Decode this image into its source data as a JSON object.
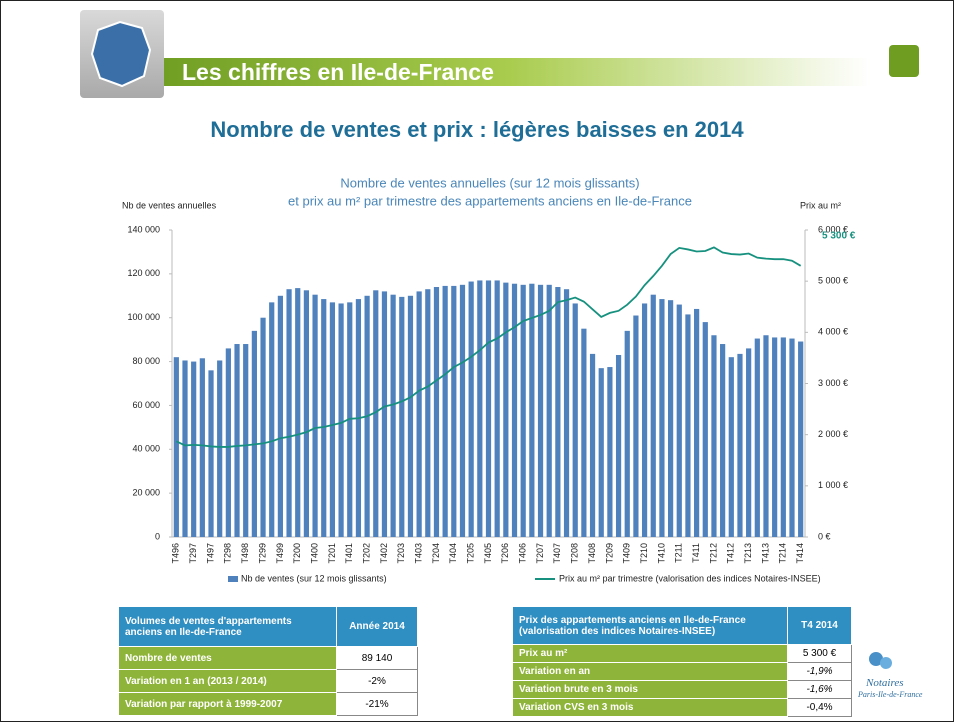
{
  "header": {
    "title": "Les chiffres en Ile-de-France",
    "headline": "Nombre de ventes et prix : légères baisses en 2014"
  },
  "chart_data": {
    "type": "bar",
    "title": [
      "Nombre de ventes annuelles (sur 12 mois glissants)",
      "et prix au m² par trimestre des appartements anciens en Ile-de-France"
    ],
    "y_label": "Nb de ventes annuelles",
    "y2_label": "Prix au m²",
    "categories": [
      "T496",
      null,
      "T297",
      null,
      "T497",
      null,
      "T298",
      null,
      "T498",
      null,
      "T299",
      null,
      "T499",
      null,
      "T200",
      null,
      "T400",
      null,
      "T201",
      null,
      "T401",
      null,
      "T202",
      null,
      "T402",
      null,
      "T203",
      null,
      "T403",
      null,
      "T204",
      null,
      "T404",
      null,
      "T205",
      null,
      "T405",
      null,
      "T206",
      null,
      "T406",
      null,
      "T207",
      null,
      "T407",
      null,
      "T208",
      null,
      "T408",
      null,
      "T209",
      null,
      "T409",
      null,
      "T210",
      null,
      "T410",
      null,
      "T211",
      null,
      "T411",
      null,
      "T212",
      null,
      "T412",
      null,
      "T213",
      null,
      "T413",
      null,
      "T214",
      null,
      "T414"
    ],
    "series": [
      {
        "name": "Nb de ventes (sur 12 mois glissants)",
        "type": "bar",
        "color": "#4f81bd",
        "values": [
          82000,
          80500,
          80000,
          81500,
          76000,
          80500,
          86000,
          88000,
          88000,
          94000,
          100000,
          107000,
          110000,
          113000,
          113500,
          112500,
          110500,
          108500,
          107000,
          106500,
          107000,
          108500,
          110000,
          112500,
          112000,
          110500,
          109500,
          110000,
          112000,
          113000,
          114000,
          114500,
          114500,
          115000,
          116500,
          117000,
          117000,
          117000,
          116000,
          115500,
          115000,
          115500,
          115000,
          115000,
          114000,
          113000,
          106500,
          95000,
          83500,
          77000,
          77500,
          83000,
          94000,
          101000,
          106500,
          110500,
          108500,
          108000,
          106000,
          101500,
          104000,
          98000,
          92000,
          88000,
          82000,
          83500,
          86000,
          90500,
          92000,
          91000,
          91000,
          90500,
          89140
        ]
      },
      {
        "name": "Prix au m² par trimestre (valorisation des indices Notaires-INSEE)",
        "type": "line",
        "axis": "y2",
        "color": "#17917f",
        "values": [
          1870,
          1790,
          1800,
          1790,
          1770,
          1760,
          1760,
          1780,
          1790,
          1810,
          1830,
          1870,
          1930,
          1960,
          2000,
          2050,
          2130,
          2150,
          2190,
          2230,
          2310,
          2320,
          2360,
          2440,
          2550,
          2590,
          2650,
          2730,
          2860,
          2940,
          3060,
          3180,
          3320,
          3410,
          3520,
          3650,
          3800,
          3880,
          4000,
          4100,
          4220,
          4280,
          4340,
          4420,
          4590,
          4630,
          4680,
          4600,
          4450,
          4300,
          4380,
          4420,
          4540,
          4700,
          4920,
          5100,
          5300,
          5530,
          5650,
          5620,
          5580,
          5590,
          5660,
          5560,
          5530,
          5520,
          5540,
          5460,
          5440,
          5430,
          5430,
          5400,
          5300
        ]
      }
    ],
    "annotation": {
      "text": "5 300 €",
      "value": 5300
    },
    "ylim": [
      0,
      140000
    ],
    "yticks": [
      0,
      {
        "value": 20000,
        "label": "20 000"
      },
      {
        "value": 40000,
        "label": "40 000"
      },
      {
        "value": 60000,
        "label": "60 000"
      },
      {
        "value": 80000,
        "label": "80 000"
      },
      {
        "value": 100000,
        "label": "100 000"
      },
      {
        "value": 120000,
        "label": "120 000"
      },
      {
        "value": 140000,
        "label": "140 000"
      }
    ],
    "y2lim": [
      0,
      6000
    ],
    "y2ticks": [
      {
        "value": 0,
        "label": "0 €"
      },
      {
        "value": 1000,
        "label": "1 000 €"
      },
      {
        "value": 2000,
        "label": "2 000 €"
      },
      {
        "value": 3000,
        "label": "3 000 €"
      },
      {
        "value": 4000,
        "label": "4 000 €"
      },
      {
        "value": 5000,
        "label": "5 000 €"
      },
      {
        "value": 6000,
        "label": "6 000 €"
      }
    ],
    "grid": false,
    "legend": "bottom"
  },
  "table_volumes": {
    "header": [
      "Volumes de ventes d'appartements anciens en Ile-de-France",
      "Année 2014"
    ],
    "rows": [
      [
        "Nombre de ventes",
        "89 140"
      ],
      [
        "Variation en 1 an (2013 / 2014)",
        "-2%"
      ],
      [
        "Variation par rapport à 1999-2007",
        "-21%"
      ]
    ]
  },
  "table_prix": {
    "header": [
      "Prix des appartements anciens en Ile-de-France (valorisation des indices Notaires-INSEE)",
      "T4 2014"
    ],
    "rows": [
      [
        "Prix au m²",
        "5 300 €"
      ],
      [
        "Variation en an",
        "-1,9%"
      ],
      [
        "Variation brute en 3 mois",
        "-1,6%"
      ],
      [
        "Variation CVS en 3 mois",
        "-0,4%"
      ]
    ]
  },
  "logo": {
    "name": "Notaires",
    "region": "Paris-Ile-de-France"
  }
}
